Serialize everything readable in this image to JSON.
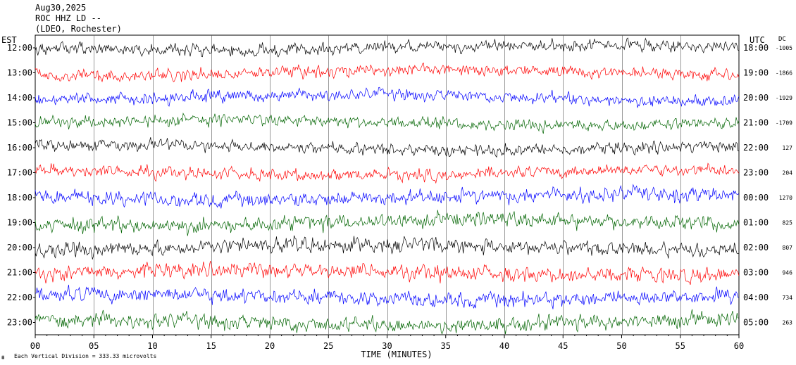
{
  "header": {
    "date": "Aug30,2025",
    "station": "ROC HHZ LD --",
    "network": "(LDEO, Rochester)"
  },
  "chart_data": {
    "type": "line",
    "left_axis_label": "EST",
    "right_axis_label": "UTC",
    "dc_label": "DC",
    "xlabel": "TIME (MINUTES)",
    "xlim": [
      0,
      60
    ],
    "x_ticks": [
      "00",
      "05",
      "10",
      "15",
      "20",
      "25",
      "30",
      "35",
      "40",
      "45",
      "50",
      "55",
      "60"
    ],
    "scale_note": "Each Vertical Division =  333.33 microvolts",
    "trace_colors": [
      "#000000",
      "#ff0000",
      "#0000ff",
      "#006400"
    ],
    "rows": [
      {
        "est": "12:00",
        "utc": "18:00",
        "dc": "-1005"
      },
      {
        "est": "13:00",
        "utc": "19:00",
        "dc": "-1866"
      },
      {
        "est": "14:00",
        "utc": "20:00",
        "dc": "-1929"
      },
      {
        "est": "15:00",
        "utc": "21:00",
        "dc": "-1709"
      },
      {
        "est": "16:00",
        "utc": "22:00",
        "dc": "127"
      },
      {
        "est": "17:00",
        "utc": "23:00",
        "dc": "204"
      },
      {
        "est": "18:00",
        "utc": "00:00",
        "dc": "1270"
      },
      {
        "est": "19:00",
        "utc": "01:00",
        "dc": "825"
      },
      {
        "est": "20:00",
        "utc": "02:00",
        "dc": "807"
      },
      {
        "est": "21:00",
        "utc": "03:00",
        "dc": "946"
      },
      {
        "est": "22:00",
        "utc": "04:00",
        "dc": "734"
      },
      {
        "est": "23:00",
        "utc": "05:00",
        "dc": "263"
      }
    ]
  }
}
